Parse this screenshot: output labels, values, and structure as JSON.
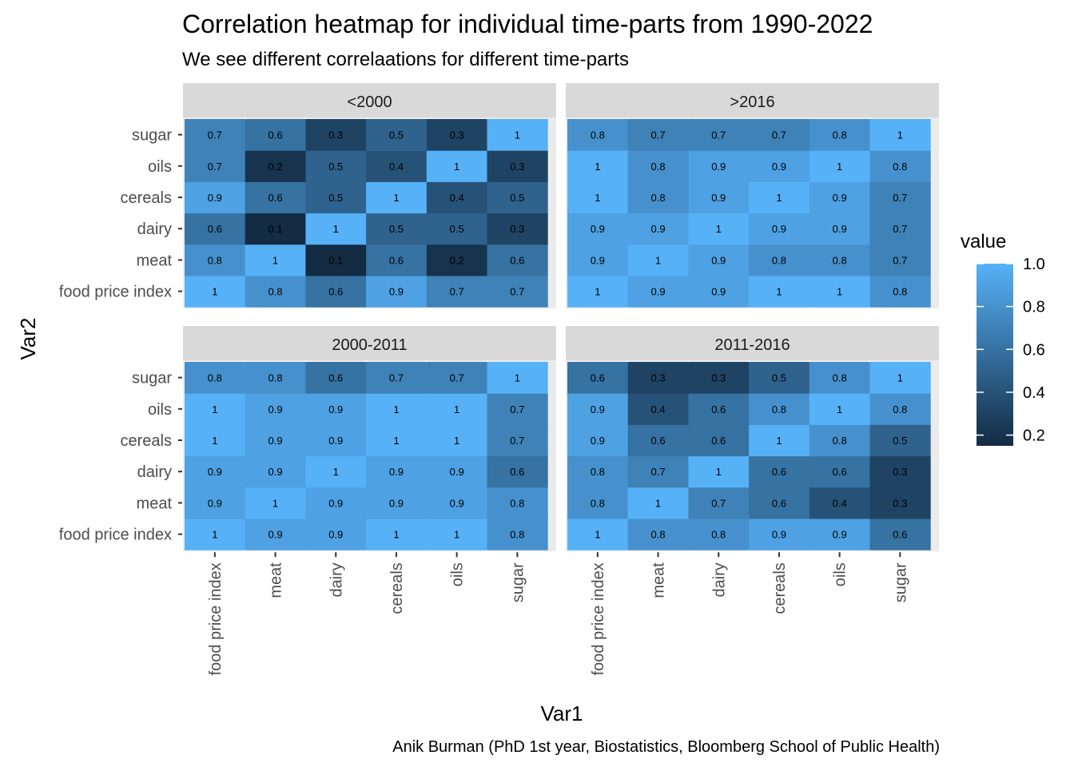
{
  "chart_data": {
    "type": "heatmap",
    "title": "Correlation heatmap for individual time-parts from 1990-2022",
    "subtitle": "We see different correlaations for different time-parts",
    "caption": "Anik Burman (PhD 1st year, Biostatistics, Bloomberg School of Public Health)",
    "xlabel": "Var1",
    "ylabel": "Var2",
    "x_categories": [
      "food price index",
      "meat",
      "dairy",
      "cereals",
      "oils",
      "sugar"
    ],
    "y_categories": [
      "food price index",
      "meat",
      "dairy",
      "cereals",
      "oils",
      "sugar"
    ],
    "legend": {
      "title": "value",
      "ticks": [
        "1.0",
        "0.8",
        "0.6",
        "0.4",
        "0.2"
      ],
      "tick_values": [
        1.0,
        0.8,
        0.6,
        0.4,
        0.2
      ],
      "range": [
        0.15,
        1.0
      ],
      "low_color": "#132B43",
      "high_color": "#56B1F7",
      "placement": "right"
    },
    "panels": [
      {
        "name": "<2000",
        "values": [
          [
            "1",
            "0.8",
            "0.6",
            "0.9",
            "0.7",
            "0.7"
          ],
          [
            "0.8",
            "1",
            "0.1",
            "0.6",
            "0.2",
            "0.6"
          ],
          [
            "0.6",
            "0.1",
            "1",
            "0.5",
            "0.5",
            "0.3"
          ],
          [
            "0.9",
            "0.6",
            "0.5",
            "1",
            "0.4",
            "0.5"
          ],
          [
            "0.7",
            "0.2",
            "0.5",
            "0.4",
            "1",
            "0.3"
          ],
          [
            "0.7",
            "0.6",
            "0.3",
            "0.5",
            "0.3",
            "1"
          ]
        ]
      },
      {
        "name": ">2016",
        "values": [
          [
            "1",
            "0.9",
            "0.9",
            "1",
            "1",
            "0.8"
          ],
          [
            "0.9",
            "1",
            "0.9",
            "0.8",
            "0.8",
            "0.7"
          ],
          [
            "0.9",
            "0.9",
            "1",
            "0.9",
            "0.9",
            "0.7"
          ],
          [
            "1",
            "0.8",
            "0.9",
            "1",
            "0.9",
            "0.7"
          ],
          [
            "1",
            "0.8",
            "0.9",
            "0.9",
            "1",
            "0.8"
          ],
          [
            "0.8",
            "0.7",
            "0.7",
            "0.7",
            "0.8",
            "1"
          ]
        ]
      },
      {
        "name": "2000-2011",
        "values": [
          [
            "1",
            "0.9",
            "0.9",
            "1",
            "1",
            "0.8"
          ],
          [
            "0.9",
            "1",
            "0.9",
            "0.9",
            "0.9",
            "0.8"
          ],
          [
            "0.9",
            "0.9",
            "1",
            "0.9",
            "0.9",
            "0.6"
          ],
          [
            "1",
            "0.9",
            "0.9",
            "1",
            "1",
            "0.7"
          ],
          [
            "1",
            "0.9",
            "0.9",
            "1",
            "1",
            "0.7"
          ],
          [
            "0.8",
            "0.8",
            "0.6",
            "0.7",
            "0.7",
            "1"
          ]
        ]
      },
      {
        "name": "2011-2016",
        "values": [
          [
            "1",
            "0.8",
            "0.8",
            "0.9",
            "0.9",
            "0.6"
          ],
          [
            "0.8",
            "1",
            "0.7",
            "0.6",
            "0.4",
            "0.3"
          ],
          [
            "0.8",
            "0.7",
            "1",
            "0.6",
            "0.6",
            "0.3"
          ],
          [
            "0.9",
            "0.6",
            "0.6",
            "1",
            "0.8",
            "0.5"
          ],
          [
            "0.9",
            "0.4",
            "0.6",
            "0.8",
            "1",
            "0.8"
          ],
          [
            "0.6",
            "0.3",
            "0.3",
            "0.5",
            "0.8",
            "1"
          ]
        ]
      }
    ],
    "grid": true
  }
}
